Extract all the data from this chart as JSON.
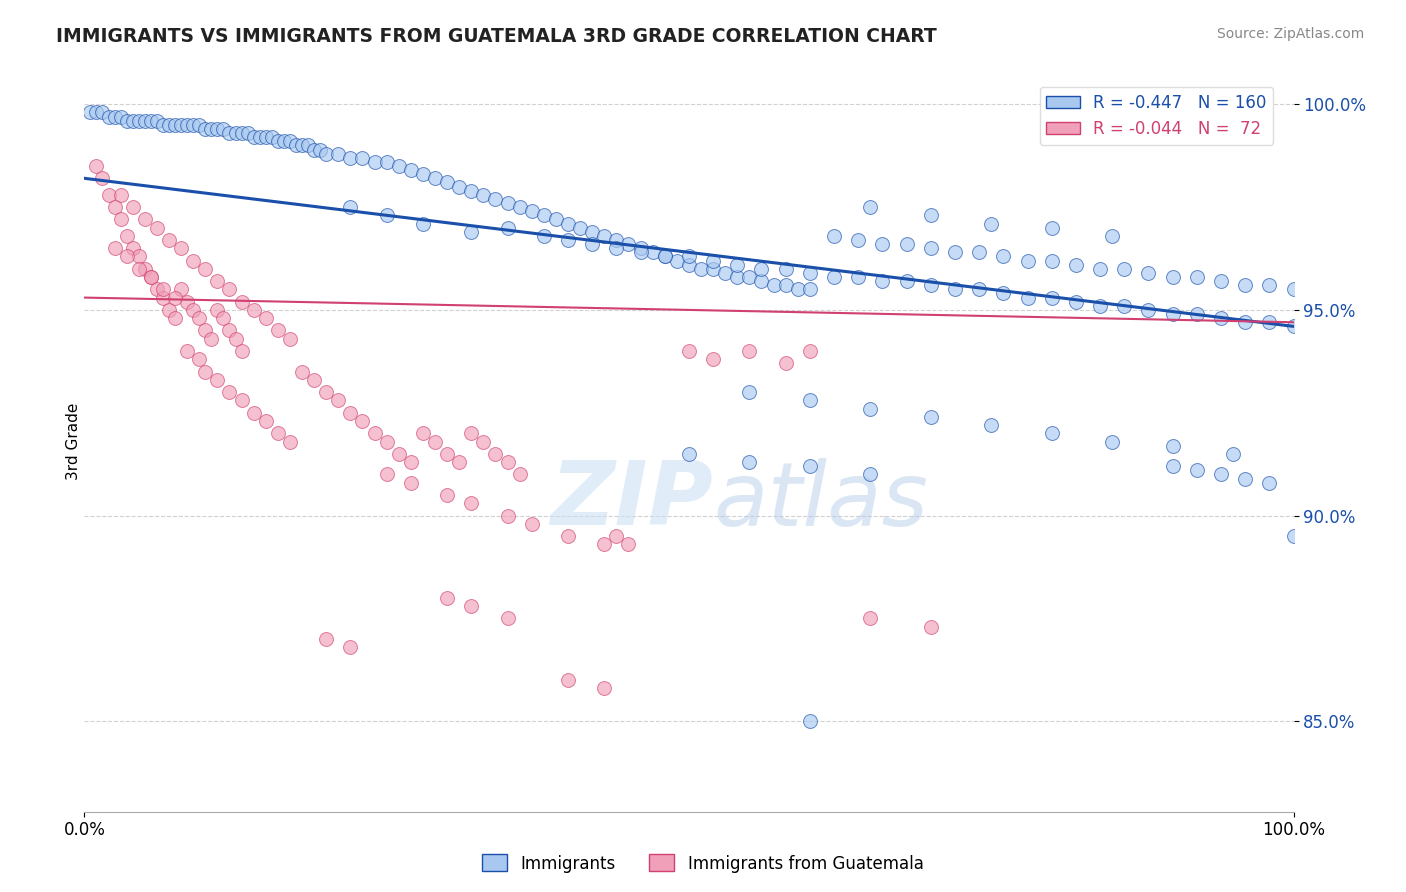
{
  "title": "IMMIGRANTS VS IMMIGRANTS FROM GUATEMALA 3RD GRADE CORRELATION CHART",
  "source_text": "Source: ZipAtlas.com",
  "ylabel": "3rd Grade",
  "x_min": 0.0,
  "x_max": 1.0,
  "y_min": 0.828,
  "y_max": 1.008,
  "y_ticks": [
    0.85,
    0.9,
    0.95,
    1.0
  ],
  "y_tick_labels": [
    "85.0%",
    "90.0%",
    "95.0%",
    "100.0%"
  ],
  "x_ticks": [
    0.0,
    1.0
  ],
  "x_tick_labels": [
    "0.0%",
    "100.0%"
  ],
  "legend_blue_r": "-0.447",
  "legend_blue_n": "160",
  "legend_pink_r": "-0.044",
  "legend_pink_n": " 72",
  "blue_color": "#a8c8f0",
  "pink_color": "#f0a0b8",
  "blue_line_color": "#1a4faa",
  "pink_line_color": "#d04070",
  "watermark_zip": "ZIP",
  "watermark_atlas": "atlas",
  "blue_scatter": [
    [
      0.005,
      0.998
    ],
    [
      0.01,
      0.998
    ],
    [
      0.015,
      0.998
    ],
    [
      0.02,
      0.997
    ],
    [
      0.025,
      0.997
    ],
    [
      0.03,
      0.997
    ],
    [
      0.035,
      0.996
    ],
    [
      0.04,
      0.996
    ],
    [
      0.045,
      0.996
    ],
    [
      0.05,
      0.996
    ],
    [
      0.055,
      0.996
    ],
    [
      0.06,
      0.996
    ],
    [
      0.065,
      0.995
    ],
    [
      0.07,
      0.995
    ],
    [
      0.075,
      0.995
    ],
    [
      0.08,
      0.995
    ],
    [
      0.085,
      0.995
    ],
    [
      0.09,
      0.995
    ],
    [
      0.095,
      0.995
    ],
    [
      0.1,
      0.994
    ],
    [
      0.105,
      0.994
    ],
    [
      0.11,
      0.994
    ],
    [
      0.115,
      0.994
    ],
    [
      0.12,
      0.993
    ],
    [
      0.125,
      0.993
    ],
    [
      0.13,
      0.993
    ],
    [
      0.135,
      0.993
    ],
    [
      0.14,
      0.992
    ],
    [
      0.145,
      0.992
    ],
    [
      0.15,
      0.992
    ],
    [
      0.155,
      0.992
    ],
    [
      0.16,
      0.991
    ],
    [
      0.165,
      0.991
    ],
    [
      0.17,
      0.991
    ],
    [
      0.175,
      0.99
    ],
    [
      0.18,
      0.99
    ],
    [
      0.185,
      0.99
    ],
    [
      0.19,
      0.989
    ],
    [
      0.195,
      0.989
    ],
    [
      0.2,
      0.988
    ],
    [
      0.21,
      0.988
    ],
    [
      0.22,
      0.987
    ],
    [
      0.23,
      0.987
    ],
    [
      0.24,
      0.986
    ],
    [
      0.25,
      0.986
    ],
    [
      0.26,
      0.985
    ],
    [
      0.27,
      0.984
    ],
    [
      0.28,
      0.983
    ],
    [
      0.29,
      0.982
    ],
    [
      0.3,
      0.981
    ],
    [
      0.31,
      0.98
    ],
    [
      0.32,
      0.979
    ],
    [
      0.33,
      0.978
    ],
    [
      0.34,
      0.977
    ],
    [
      0.35,
      0.976
    ],
    [
      0.36,
      0.975
    ],
    [
      0.37,
      0.974
    ],
    [
      0.38,
      0.973
    ],
    [
      0.39,
      0.972
    ],
    [
      0.4,
      0.971
    ],
    [
      0.41,
      0.97
    ],
    [
      0.42,
      0.969
    ],
    [
      0.43,
      0.968
    ],
    [
      0.44,
      0.967
    ],
    [
      0.45,
      0.966
    ],
    [
      0.46,
      0.965
    ],
    [
      0.47,
      0.964
    ],
    [
      0.48,
      0.963
    ],
    [
      0.49,
      0.962
    ],
    [
      0.5,
      0.961
    ],
    [
      0.51,
      0.96
    ],
    [
      0.52,
      0.96
    ],
    [
      0.53,
      0.959
    ],
    [
      0.54,
      0.958
    ],
    [
      0.55,
      0.958
    ],
    [
      0.56,
      0.957
    ],
    [
      0.57,
      0.956
    ],
    [
      0.58,
      0.956
    ],
    [
      0.59,
      0.955
    ],
    [
      0.6,
      0.955
    ],
    [
      0.35,
      0.97
    ],
    [
      0.38,
      0.968
    ],
    [
      0.4,
      0.967
    ],
    [
      0.42,
      0.966
    ],
    [
      0.44,
      0.965
    ],
    [
      0.46,
      0.964
    ],
    [
      0.48,
      0.963
    ],
    [
      0.5,
      0.963
    ],
    [
      0.52,
      0.962
    ],
    [
      0.54,
      0.961
    ],
    [
      0.56,
      0.96
    ],
    [
      0.58,
      0.96
    ],
    [
      0.6,
      0.959
    ],
    [
      0.62,
      0.958
    ],
    [
      0.64,
      0.958
    ],
    [
      0.66,
      0.957
    ],
    [
      0.68,
      0.957
    ],
    [
      0.7,
      0.956
    ],
    [
      0.72,
      0.955
    ],
    [
      0.74,
      0.955
    ],
    [
      0.76,
      0.954
    ],
    [
      0.78,
      0.953
    ],
    [
      0.8,
      0.953
    ],
    [
      0.82,
      0.952
    ],
    [
      0.84,
      0.951
    ],
    [
      0.86,
      0.951
    ],
    [
      0.88,
      0.95
    ],
    [
      0.9,
      0.949
    ],
    [
      0.92,
      0.949
    ],
    [
      0.94,
      0.948
    ],
    [
      0.96,
      0.947
    ],
    [
      0.98,
      0.947
    ],
    [
      1.0,
      0.946
    ],
    [
      0.62,
      0.968
    ],
    [
      0.64,
      0.967
    ],
    [
      0.66,
      0.966
    ],
    [
      0.68,
      0.966
    ],
    [
      0.7,
      0.965
    ],
    [
      0.72,
      0.964
    ],
    [
      0.74,
      0.964
    ],
    [
      0.76,
      0.963
    ],
    [
      0.78,
      0.962
    ],
    [
      0.8,
      0.962
    ],
    [
      0.82,
      0.961
    ],
    [
      0.84,
      0.96
    ],
    [
      0.86,
      0.96
    ],
    [
      0.88,
      0.959
    ],
    [
      0.9,
      0.958
    ],
    [
      0.92,
      0.958
    ],
    [
      0.94,
      0.957
    ],
    [
      0.96,
      0.956
    ],
    [
      0.98,
      0.956
    ],
    [
      1.0,
      0.955
    ],
    [
      0.65,
      0.975
    ],
    [
      0.7,
      0.973
    ],
    [
      0.75,
      0.971
    ],
    [
      0.8,
      0.97
    ],
    [
      0.85,
      0.968
    ],
    [
      0.9,
      0.912
    ],
    [
      0.92,
      0.911
    ],
    [
      0.94,
      0.91
    ],
    [
      0.96,
      0.909
    ],
    [
      0.98,
      0.908
    ],
    [
      1.0,
      0.895
    ],
    [
      0.5,
      0.915
    ],
    [
      0.55,
      0.913
    ],
    [
      0.6,
      0.912
    ],
    [
      0.65,
      0.91
    ],
    [
      0.55,
      0.93
    ],
    [
      0.6,
      0.928
    ],
    [
      0.65,
      0.926
    ],
    [
      0.7,
      0.924
    ],
    [
      0.75,
      0.922
    ],
    [
      0.8,
      0.92
    ],
    [
      0.85,
      0.918
    ],
    [
      0.9,
      0.917
    ],
    [
      0.95,
      0.915
    ],
    [
      0.22,
      0.975
    ],
    [
      0.25,
      0.973
    ],
    [
      0.28,
      0.971
    ],
    [
      0.32,
      0.969
    ],
    [
      0.6,
      0.85
    ]
  ],
  "pink_scatter": [
    [
      0.01,
      0.985
    ],
    [
      0.015,
      0.982
    ],
    [
      0.02,
      0.978
    ],
    [
      0.025,
      0.975
    ],
    [
      0.03,
      0.972
    ],
    [
      0.035,
      0.968
    ],
    [
      0.04,
      0.965
    ],
    [
      0.045,
      0.963
    ],
    [
      0.05,
      0.96
    ],
    [
      0.055,
      0.958
    ],
    [
      0.06,
      0.955
    ],
    [
      0.065,
      0.953
    ],
    [
      0.07,
      0.95
    ],
    [
      0.075,
      0.948
    ],
    [
      0.08,
      0.955
    ],
    [
      0.085,
      0.952
    ],
    [
      0.09,
      0.95
    ],
    [
      0.095,
      0.948
    ],
    [
      0.1,
      0.945
    ],
    [
      0.105,
      0.943
    ],
    [
      0.11,
      0.95
    ],
    [
      0.115,
      0.948
    ],
    [
      0.12,
      0.945
    ],
    [
      0.125,
      0.943
    ],
    [
      0.13,
      0.94
    ],
    [
      0.03,
      0.978
    ],
    [
      0.04,
      0.975
    ],
    [
      0.05,
      0.972
    ],
    [
      0.06,
      0.97
    ],
    [
      0.07,
      0.967
    ],
    [
      0.08,
      0.965
    ],
    [
      0.09,
      0.962
    ],
    [
      0.1,
      0.96
    ],
    [
      0.11,
      0.957
    ],
    [
      0.12,
      0.955
    ],
    [
      0.13,
      0.952
    ],
    [
      0.14,
      0.95
    ],
    [
      0.15,
      0.948
    ],
    [
      0.16,
      0.945
    ],
    [
      0.17,
      0.943
    ],
    [
      0.025,
      0.965
    ],
    [
      0.035,
      0.963
    ],
    [
      0.045,
      0.96
    ],
    [
      0.055,
      0.958
    ],
    [
      0.065,
      0.955
    ],
    [
      0.075,
      0.953
    ],
    [
      0.085,
      0.94
    ],
    [
      0.095,
      0.938
    ],
    [
      0.1,
      0.935
    ],
    [
      0.11,
      0.933
    ],
    [
      0.12,
      0.93
    ],
    [
      0.13,
      0.928
    ],
    [
      0.14,
      0.925
    ],
    [
      0.15,
      0.923
    ],
    [
      0.16,
      0.92
    ],
    [
      0.17,
      0.918
    ],
    [
      0.18,
      0.935
    ],
    [
      0.19,
      0.933
    ],
    [
      0.2,
      0.93
    ],
    [
      0.21,
      0.928
    ],
    [
      0.22,
      0.925
    ],
    [
      0.23,
      0.923
    ],
    [
      0.24,
      0.92
    ],
    [
      0.25,
      0.918
    ],
    [
      0.26,
      0.915
    ],
    [
      0.27,
      0.913
    ],
    [
      0.28,
      0.92
    ],
    [
      0.29,
      0.918
    ],
    [
      0.3,
      0.915
    ],
    [
      0.31,
      0.913
    ],
    [
      0.32,
      0.92
    ],
    [
      0.33,
      0.918
    ],
    [
      0.34,
      0.915
    ],
    [
      0.35,
      0.913
    ],
    [
      0.36,
      0.91
    ],
    [
      0.25,
      0.91
    ],
    [
      0.27,
      0.908
    ],
    [
      0.3,
      0.905
    ],
    [
      0.32,
      0.903
    ],
    [
      0.35,
      0.9
    ],
    [
      0.37,
      0.898
    ],
    [
      0.4,
      0.895
    ],
    [
      0.43,
      0.893
    ],
    [
      0.44,
      0.895
    ],
    [
      0.45,
      0.893
    ],
    [
      0.3,
      0.88
    ],
    [
      0.32,
      0.878
    ],
    [
      0.35,
      0.875
    ],
    [
      0.5,
      0.94
    ],
    [
      0.52,
      0.938
    ],
    [
      0.55,
      0.94
    ],
    [
      0.58,
      0.937
    ],
    [
      0.6,
      0.94
    ],
    [
      0.65,
      0.875
    ],
    [
      0.7,
      0.873
    ],
    [
      0.2,
      0.87
    ],
    [
      0.22,
      0.868
    ],
    [
      0.4,
      0.86
    ],
    [
      0.43,
      0.858
    ]
  ]
}
